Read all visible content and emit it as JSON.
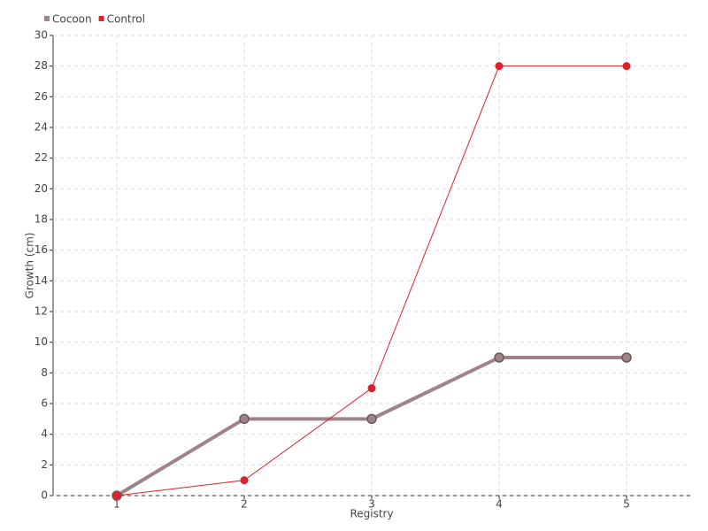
{
  "chart_data": {
    "type": "line",
    "x_label": "Registry",
    "y_label": "Growth (cm)",
    "categories": [
      "1",
      "2",
      "3",
      "4",
      "5"
    ],
    "series": [
      {
        "name": "Cocoon",
        "color": "#9e8489",
        "values": [
          0,
          5,
          5,
          9,
          9
        ]
      },
      {
        "name": "Control",
        "color": "#e0202a",
        "values": [
          0,
          1,
          7,
          28,
          28
        ]
      }
    ],
    "ylim": [
      0,
      30
    ],
    "yticks": [
      0,
      2,
      4,
      6,
      8,
      10,
      12,
      14,
      16,
      18,
      20,
      22,
      24,
      26,
      28,
      30
    ],
    "grid": true,
    "legend": "top-left"
  }
}
